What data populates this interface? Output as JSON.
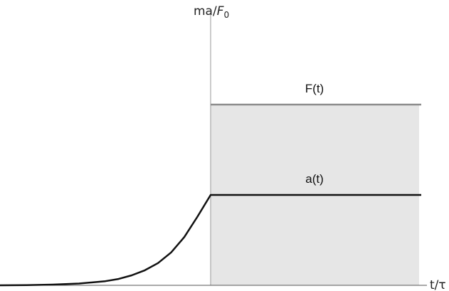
{
  "chart_data": {
    "type": "line",
    "title": "",
    "xlabel": "t/τ",
    "ylabel_main": "ma/",
    "ylabel_sym": "F",
    "ylabel_sub": "0",
    "xlim": [
      -4,
      4
    ],
    "ylim": [
      0,
      1.5
    ],
    "grid": false,
    "legend": "none",
    "colors": {
      "force": "#8c8c8c",
      "accel": "#111111",
      "shade": "#e6e6e6",
      "axis": "#999999"
    },
    "series": [
      {
        "name": "F(t)",
        "x": [
          0,
          4
        ],
        "y": [
          1.0,
          1.0
        ]
      },
      {
        "name": "a(t)",
        "x": [
          -4.0,
          -3.5,
          -3.0,
          -2.5,
          -2.0,
          -1.75,
          -1.5,
          -1.25,
          -1.0,
          -0.75,
          -0.5,
          -0.25,
          0.0,
          4.0
        ],
        "y": [
          0.0,
          0.001,
          0.004,
          0.01,
          0.023,
          0.035,
          0.055,
          0.083,
          0.123,
          0.182,
          0.267,
          0.38,
          0.5,
          0.5
        ]
      }
    ]
  }
}
